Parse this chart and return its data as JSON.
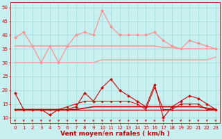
{
  "xlabel": "Vent moyen/en rafales ( km/h )",
  "bg_color": "#c8f0f0",
  "grid_color": "#a0d8d8",
  "xlim": [
    -0.5,
    23.5
  ],
  "ylim": [
    8,
    52
  ],
  "yticks": [
    10,
    15,
    20,
    25,
    30,
    35,
    40,
    45,
    50
  ],
  "xticks": [
    0,
    1,
    2,
    3,
    4,
    5,
    6,
    7,
    8,
    9,
    10,
    11,
    12,
    13,
    14,
    15,
    16,
    17,
    18,
    19,
    20,
    21,
    22,
    23
  ],
  "series": [
    {
      "name": "rafales_peak",
      "color": "#ff8888",
      "linewidth": 0.8,
      "marker": "D",
      "markersize": 2.0,
      "values": [
        39,
        41,
        36,
        30,
        36,
        30,
        36,
        40,
        41,
        40,
        49,
        43,
        40,
        40,
        40,
        40,
        41,
        38,
        36,
        35,
        38,
        37,
        36,
        35
      ]
    },
    {
      "name": "rafales_upper_trend",
      "color": "#ff9999",
      "linewidth": 1.2,
      "marker": null,
      "values": [
        36,
        36,
        36,
        36,
        36,
        36,
        36,
        36,
        36,
        36,
        36,
        36,
        36,
        36,
        36,
        36,
        36,
        35.5,
        35.5,
        35,
        35,
        35,
        35,
        35
      ]
    },
    {
      "name": "rafales_lower_trend",
      "color": "#ff9999",
      "linewidth": 1.0,
      "marker": null,
      "values": [
        30,
        30,
        30,
        30,
        30,
        30,
        30,
        30,
        30,
        30,
        31,
        31,
        31,
        31,
        31,
        31,
        31,
        31,
        31,
        31,
        31,
        31,
        31,
        32
      ]
    },
    {
      "name": "vent_peak",
      "color": "#cc0000",
      "linewidth": 0.8,
      "marker": "D",
      "markersize": 2.0,
      "values": [
        19,
        13,
        13,
        13,
        11,
        13,
        13,
        14,
        19,
        16,
        21,
        24,
        20,
        18,
        16,
        14,
        22,
        10,
        14,
        16,
        18,
        17,
        15,
        13
      ]
    },
    {
      "name": "vent_upper_trend",
      "color": "#cc0000",
      "linewidth": 1.2,
      "marker": null,
      "values": [
        13,
        13,
        13,
        13,
        13,
        13,
        13,
        13,
        13.5,
        14,
        14,
        14,
        14,
        14,
        14,
        14,
        14,
        14,
        14,
        14,
        14,
        14,
        13.5,
        13
      ]
    },
    {
      "name": "vent_lower_trend",
      "color": "#cc0000",
      "linewidth": 1.0,
      "marker": null,
      "values": [
        13,
        13,
        13,
        13,
        13,
        13,
        13,
        13,
        13,
        13,
        13,
        13,
        13,
        13,
        13,
        13,
        13,
        13,
        13,
        13,
        13,
        13,
        13,
        13
      ]
    },
    {
      "name": "vent_secondary",
      "color": "#cc0000",
      "linewidth": 0.7,
      "marker": "D",
      "markersize": 1.5,
      "values": [
        13,
        13,
        13,
        13,
        13,
        13,
        14,
        15,
        16,
        16,
        16,
        16,
        16,
        16,
        15,
        13,
        21,
        13,
        13,
        15,
        15,
        15,
        13,
        13
      ]
    }
  ],
  "font_color": "#cc0000",
  "tick_fontsize": 5.0,
  "xlabel_fontsize": 6.5,
  "arrow_color": "#cc0000"
}
